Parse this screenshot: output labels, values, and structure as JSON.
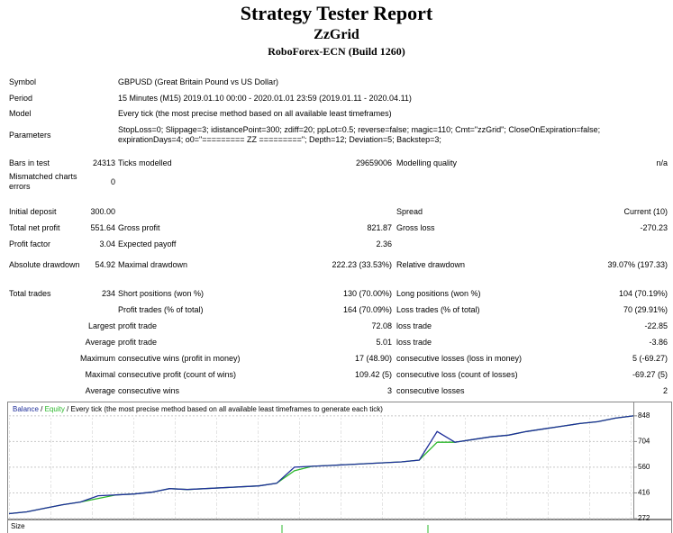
{
  "header": {
    "title": "Strategy Tester Report",
    "subtitle": "ZzGrid",
    "broker": "RoboForex-ECN (Build 1260)"
  },
  "info": [
    {
      "label": "Symbol",
      "value": "GBPUSD (Great Britain Pound vs US Dollar)"
    },
    {
      "label": "Period",
      "value": "15 Minutes (M15) 2019.01.10 00:00 - 2020.01.01 23:59 (2019.01.11 - 2020.04.11)"
    },
    {
      "label": "Model",
      "value": "Every tick (the most precise method based on all available least timeframes)"
    },
    {
      "label": "Parameters",
      "value": "StopLoss=0; Slippage=3; idistancePoint=300; zdiff=20; ppLot=0.5; reverse=false; magic=110; Cmt=\"zzGrid\"; CloseOnExpiration=false; expirationDays=4; o0=\"========= ZZ =========\"; Depth=12; Deviation=5; Backstep=3;"
    }
  ],
  "stats": [
    [
      "Bars in test",
      "24313",
      "Ticks modelled",
      "29659006",
      "Modelling quality",
      "n/a"
    ],
    [
      "Mismatched charts errors",
      "0",
      null,
      null,
      null,
      null
    ],
    [
      "Initial deposit",
      "300.00",
      null,
      null,
      "Spread",
      "Current (10)"
    ],
    [
      "Total net profit",
      "551.64",
      "Gross profit",
      "821.87",
      "Gross loss",
      "-270.23"
    ],
    [
      "Profit factor",
      "3.04",
      "Expected payoff",
      "2.36",
      null,
      null
    ],
    [
      "Absolute drawdown",
      "54.92",
      "Maximal drawdown",
      "222.23 (33.53%)",
      "Relative drawdown",
      "39.07% (197.33)"
    ],
    [
      "Total trades",
      "234",
      "Short positions (won %)",
      "130 (70.00%)",
      "Long positions (won %)",
      "104 (70.19%)"
    ],
    [
      null,
      null,
      "Profit trades (% of total)",
      "164 (70.09%)",
      "Loss trades (% of total)",
      "70 (29.91%)"
    ],
    [
      null,
      "Largest",
      "profit trade",
      "72.08",
      "loss trade",
      "-22.85"
    ],
    [
      null,
      "Average",
      "profit trade",
      "5.01",
      "loss trade",
      "-3.86"
    ],
    [
      null,
      "Maximum",
      "consecutive wins (profit in money)",
      "17 (48.90)",
      "consecutive losses (loss in money)",
      "5 (-69.27)"
    ],
    [
      null,
      "Maximal",
      "consecutive profit (count of wins)",
      "109.42 (5)",
      "consecutive loss (count of losses)",
      "-69.27 (5)"
    ],
    [
      null,
      "Average",
      "consecutive wins",
      "3",
      "consecutive losses",
      "2"
    ]
  ],
  "chart_data": {
    "type": "line",
    "legend_separator": " / ",
    "subtitle": "Every tick (the most precise method based on all available least timeframes to generate each tick)",
    "lower_panel_label": "Size",
    "ylim": [
      267,
      923
    ],
    "yticks": [
      272,
      416,
      560,
      704,
      848
    ],
    "grid": true,
    "series": [
      {
        "name": "Equity",
        "color": "#2db82d",
        "values": [
          300,
          310,
          330,
          350,
          365,
          385,
          405,
          410,
          420,
          440,
          435,
          440,
          445,
          450,
          455,
          470,
          540,
          565,
          570,
          575,
          580,
          585,
          590,
          600,
          700,
          700,
          715,
          730,
          740,
          760,
          775,
          790,
          805,
          815,
          835,
          848
        ]
      },
      {
        "name": "Balance",
        "color": "#1f2f9a",
        "values": [
          300,
          310,
          330,
          350,
          365,
          400,
          405,
          410,
          420,
          440,
          435,
          440,
          445,
          450,
          455,
          470,
          560,
          565,
          570,
          575,
          580,
          585,
          590,
          600,
          760,
          700,
          715,
          730,
          740,
          760,
          775,
          790,
          805,
          815,
          835,
          848
        ]
      }
    ]
  }
}
